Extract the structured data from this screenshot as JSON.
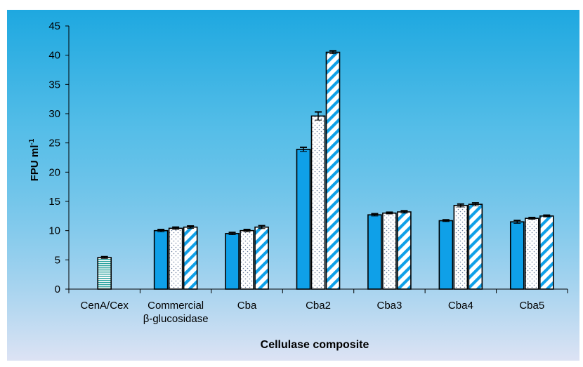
{
  "chart_data": {
    "type": "bar",
    "title": "",
    "xlabel": "Cellulase composite",
    "ylabel": "FPU ml",
    "ylabel_superscript": "-1",
    "ylim": [
      0,
      45
    ],
    "yticks": [
      0,
      5,
      10,
      15,
      20,
      25,
      30,
      35,
      40,
      45
    ],
    "grid": false,
    "legend": "none",
    "categories": [
      [
        "CenA/Cex"
      ],
      [
        "Commercial",
        "β-glucosidase"
      ],
      [
        "Cba"
      ],
      [
        "Cba2"
      ],
      [
        "Cba3"
      ],
      [
        "Cba4"
      ],
      [
        "Cba5"
      ]
    ],
    "groups": [
      {
        "bars": [
          {
            "pattern": "horizontal-lines",
            "value": 5.4,
            "error": 0.15
          }
        ]
      },
      {
        "bars": [
          {
            "pattern": "solid",
            "value": 10.0,
            "error": 0.2
          },
          {
            "pattern": "dots",
            "value": 10.4,
            "error": 0.2
          },
          {
            "pattern": "diagonal",
            "value": 10.6,
            "error": 0.2
          }
        ]
      },
      {
        "bars": [
          {
            "pattern": "solid",
            "value": 9.5,
            "error": 0.2
          },
          {
            "pattern": "dots",
            "value": 10.0,
            "error": 0.2
          },
          {
            "pattern": "diagonal",
            "value": 10.6,
            "error": 0.25
          }
        ]
      },
      {
        "bars": [
          {
            "pattern": "solid",
            "value": 23.9,
            "error": 0.35
          },
          {
            "pattern": "dots",
            "value": 29.6,
            "error": 0.7
          },
          {
            "pattern": "diagonal",
            "value": 40.5,
            "error": 0.25
          }
        ]
      },
      {
        "bars": [
          {
            "pattern": "solid",
            "value": 12.7,
            "error": 0.2
          },
          {
            "pattern": "dots",
            "value": 13.0,
            "error": 0.15
          },
          {
            "pattern": "diagonal",
            "value": 13.2,
            "error": 0.2
          }
        ]
      },
      {
        "bars": [
          {
            "pattern": "solid",
            "value": 11.7,
            "error": 0.15
          },
          {
            "pattern": "dots",
            "value": 14.3,
            "error": 0.25
          },
          {
            "pattern": "diagonal",
            "value": 14.5,
            "error": 0.25
          }
        ]
      },
      {
        "bars": [
          {
            "pattern": "solid",
            "value": 11.5,
            "error": 0.25
          },
          {
            "pattern": "dots",
            "value": 12.1,
            "error": 0.15
          },
          {
            "pattern": "diagonal",
            "value": 12.5,
            "error": 0.15
          }
        ]
      }
    ],
    "colors": {
      "background_top": "#1ea8e0",
      "background_bottom": "#dde3f4",
      "bar_fill": "#0fa0e8",
      "pattern_bg": "#ffffff",
      "teal_lines": "#2aa3a0",
      "dots": "#6b7f9e",
      "outline": "#000000"
    }
  }
}
